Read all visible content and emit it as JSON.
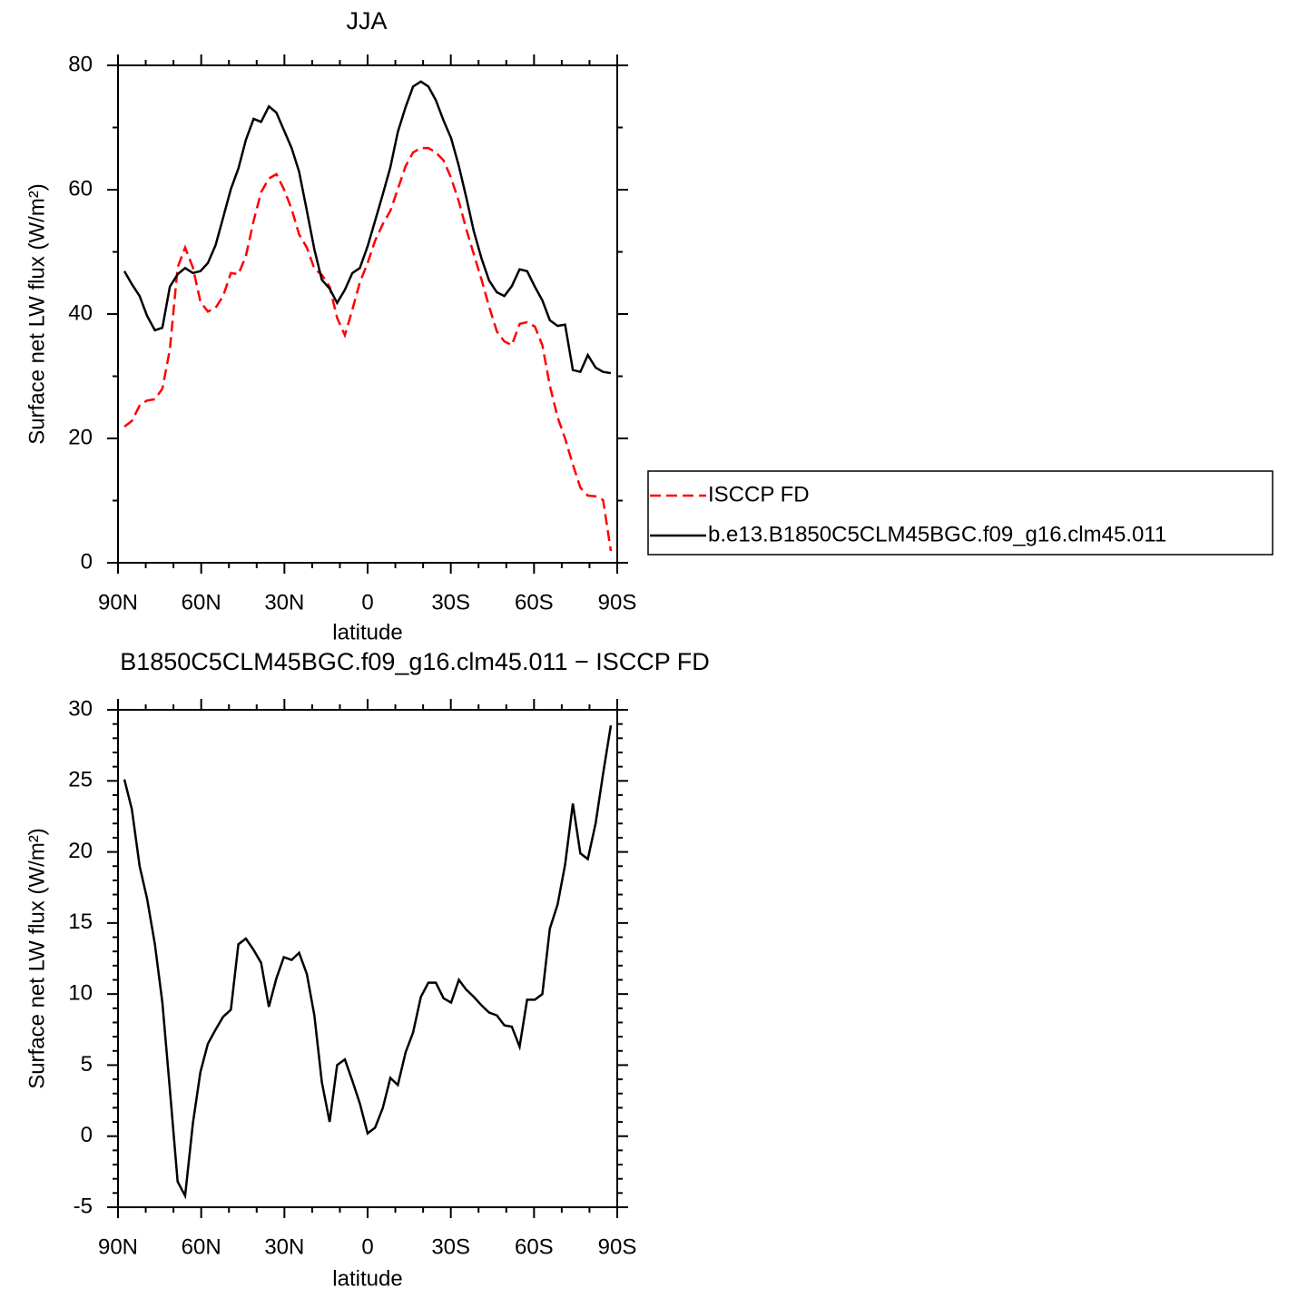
{
  "chart_data": [
    {
      "type": "line",
      "title": "JJA",
      "x_label": "latitude",
      "y_label": "Surface net LW flux (W/m²)",
      "x": [
        87.7,
        85.0,
        82.2,
        79.5,
        76.7,
        74.0,
        71.3,
        68.5,
        65.8,
        63.0,
        60.3,
        57.6,
        54.8,
        52.1,
        49.3,
        46.6,
        43.9,
        41.1,
        38.4,
        35.6,
        32.9,
        30.2,
        27.4,
        24.7,
        21.9,
        19.2,
        16.5,
        13.7,
        11.0,
        8.2,
        5.5,
        2.8,
        0.0,
        -2.7,
        -5.5,
        -8.2,
        -10.9,
        -13.7,
        -16.4,
        -19.2,
        -21.9,
        -24.6,
        -27.4,
        -30.1,
        -32.9,
        -35.6,
        -38.3,
        -41.1,
        -43.8,
        -46.6,
        -49.3,
        -52.0,
        -54.8,
        -57.5,
        -60.3,
        -63.0,
        -65.7,
        -68.5,
        -71.2,
        -74.0,
        -76.7,
        -79.4,
        -82.2,
        -84.9,
        -87.7
      ],
      "series": [
        {
          "name": "ISCCP FD",
          "color": "#ff0000",
          "dashed": true,
          "values": [
            21.9,
            22.8,
            25.3,
            26.1,
            26.3,
            28.0,
            34.3,
            47.5,
            50.7,
            47.5,
            42.0,
            40.4,
            41.0,
            42.9,
            46.6,
            46.4,
            49.3,
            55.0,
            59.6,
            61.8,
            62.5,
            60.1,
            56.9,
            52.8,
            50.7,
            47.3,
            46.3,
            44.4,
            39.4,
            36.6,
            40.7,
            45.1,
            48.2,
            51.8,
            54.5,
            56.6,
            60.1,
            63.8,
            66.0,
            66.7,
            66.7,
            66.0,
            64.7,
            61.9,
            58.1,
            53.6,
            49.6,
            45.5,
            41.2,
            37.2,
            35.6,
            35.0,
            38.4,
            38.7,
            38.0,
            35.0,
            28.5,
            23.4,
            20.0,
            15.8,
            12.1,
            10.8,
            10.7,
            10.1,
            1.9
          ]
        },
        {
          "name": "b.e13.B1850C5CLM45BGC.f09_g16.clm45.011",
          "color": "#000000",
          "dashed": false,
          "values": [
            46.9,
            44.8,
            42.9,
            39.7,
            37.4,
            37.8,
            44.4,
            46.4,
            47.4,
            46.6,
            46.9,
            48.2,
            51.1,
            55.5,
            60.1,
            63.4,
            68.0,
            71.4,
            70.9,
            73.4,
            72.4,
            69.6,
            66.7,
            62.9,
            56.6,
            50.4,
            45.5,
            44.1,
            41.8,
            43.9,
            46.6,
            47.4,
            50.9,
            55.0,
            59.3,
            63.6,
            69.3,
            73.3,
            76.6,
            77.4,
            76.6,
            74.4,
            71.1,
            68.3,
            63.8,
            58.7,
            53.3,
            48.9,
            45.4,
            43.5,
            42.9,
            44.5,
            47.2,
            46.9,
            44.4,
            42.2,
            39.0,
            38.1,
            38.3,
            31.0,
            30.7,
            33.4,
            31.4,
            30.7,
            30.5
          ]
        }
      ],
      "xlim": [
        90,
        -90
      ],
      "xticks": [
        {
          "value": 90,
          "label": "90N"
        },
        {
          "value": 60,
          "label": "60N"
        },
        {
          "value": 30,
          "label": "30N"
        },
        0,
        {
          "value": -30,
          "label": "30S"
        },
        {
          "value": -60,
          "label": "60S"
        },
        {
          "value": -90,
          "label": "90S"
        }
      ],
      "ylim": [
        0,
        80
      ],
      "yticks": [
        0,
        20,
        40,
        60,
        80
      ],
      "legend": "right"
    },
    {
      "type": "line",
      "title": "B1850C5CLM45BGC.f09_g16.clm45.011 − ISCCP FD",
      "x_label": "latitude",
      "y_label": "Surface net LW flux (W/m²)",
      "x": [
        87.7,
        85.0,
        82.2,
        79.5,
        76.7,
        74.0,
        71.3,
        68.5,
        65.8,
        63.0,
        60.3,
        57.6,
        54.8,
        52.1,
        49.3,
        46.6,
        43.9,
        41.1,
        38.4,
        35.6,
        32.9,
        30.2,
        27.4,
        24.7,
        21.9,
        19.2,
        16.5,
        13.7,
        11.0,
        8.2,
        5.5,
        2.8,
        0.0,
        -2.7,
        -5.5,
        -8.2,
        -10.9,
        -13.7,
        -16.4,
        -19.2,
        -21.9,
        -24.6,
        -27.4,
        -30.1,
        -32.9,
        -35.6,
        -38.3,
        -41.1,
        -43.8,
        -46.6,
        -49.3,
        -52.0,
        -54.8,
        -57.5,
        -60.3,
        -63.0,
        -65.7,
        -68.5,
        -71.2,
        -74.0,
        -76.7,
        -79.4,
        -82.2,
        -84.9,
        -87.7
      ],
      "values": [
        25.1,
        23.0,
        19.0,
        16.7,
        13.5,
        9.4,
        3.3,
        -3.2,
        -4.2,
        0.9,
        4.5,
        6.5,
        7.5,
        8.4,
        8.9,
        13.5,
        13.9,
        13.1,
        12.2,
        9.1,
        11.1,
        12.6,
        12.4,
        12.9,
        11.4,
        8.5,
        3.8,
        1.0,
        5.0,
        5.4,
        3.9,
        2.3,
        0.2,
        0.6,
        2.0,
        4.1,
        3.6,
        5.9,
        7.3,
        9.8,
        10.8,
        10.8,
        9.7,
        9.4,
        11.0,
        10.3,
        9.8,
        9.2,
        8.7,
        8.5,
        7.8,
        7.7,
        6.3,
        9.6,
        9.6,
        10.0,
        14.6,
        16.3,
        19.1,
        23.4,
        19.9,
        19.5,
        22.0,
        25.5,
        28.9
      ],
      "color": "#000000",
      "xlim": [
        90,
        -90
      ],
      "xticks": [
        {
          "value": 90,
          "label": "90N"
        },
        {
          "value": 60,
          "label": "60N"
        },
        {
          "value": 30,
          "label": "30N"
        },
        0,
        {
          "value": -30,
          "label": "30S"
        },
        {
          "value": -60,
          "label": "60S"
        },
        {
          "value": -90,
          "label": "90S"
        }
      ],
      "ylim": [
        -5,
        30
      ],
      "yticks": [
        -5,
        0,
        5,
        10,
        15,
        20,
        25,
        30
      ]
    }
  ]
}
